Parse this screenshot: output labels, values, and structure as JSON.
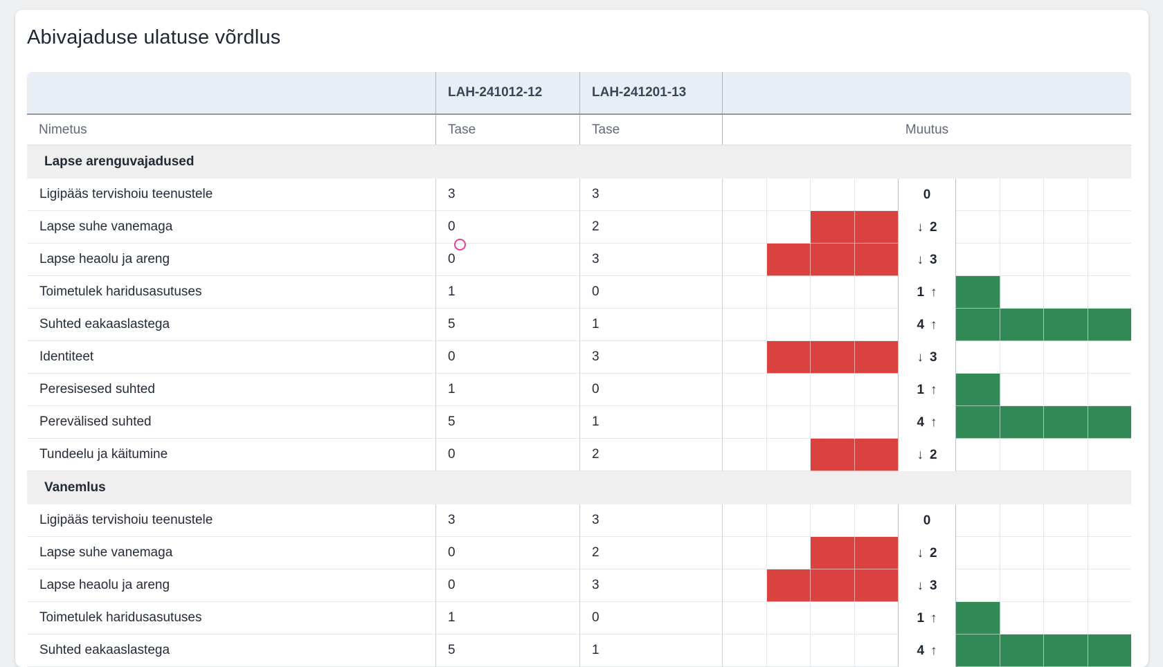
{
  "page": {
    "title": "Abivajaduse ulatuse võrdlus"
  },
  "icons": {
    "decrease": "↓",
    "increase": "↑",
    "click_marker": "pink-ring"
  },
  "colors": {
    "negative_bar": "#d9423f",
    "positive_bar": "#318a55",
    "header_background": "#e8eef6",
    "section_background": "#efefef",
    "annotation_pink": "#e83e97"
  },
  "table": {
    "assessments": [
      "LAH-241012-12",
      "LAH-241201-13"
    ],
    "columns": {
      "name": "Nimetus",
      "level": "Tase",
      "change": "Muutus"
    },
    "sections": [
      {
        "title": "Lapse arenguvajadused",
        "rows": [
          {
            "name": "Ligipääs tervishoiu teenustele",
            "tase1": "3",
            "tase2": "3",
            "muutus": 0,
            "muutus_display": "0"
          },
          {
            "name": "Lapse suhe vanemaga",
            "tase1": "0",
            "tase2": "2",
            "muutus": -2,
            "muutus_display": "2"
          },
          {
            "name": "Lapse heaolu ja areng",
            "tase1": "0",
            "tase2": "3",
            "muutus": -3,
            "muutus_display": "3"
          },
          {
            "name": "Toimetulek haridusasutuses",
            "tase1": "1",
            "tase2": "0",
            "muutus": 1,
            "muutus_display": "1"
          },
          {
            "name": "Suhted eakaaslastega",
            "tase1": "5",
            "tase2": "1",
            "muutus": 4,
            "muutus_display": "4"
          },
          {
            "name": "Identiteet",
            "tase1": "0",
            "tase2": "3",
            "muutus": -3,
            "muutus_display": "3"
          },
          {
            "name": "Peresisesed suhted",
            "tase1": "1",
            "tase2": "0",
            "muutus": 1,
            "muutus_display": "1"
          },
          {
            "name": "Perevälised suhted",
            "tase1": "5",
            "tase2": "1",
            "muutus": 4,
            "muutus_display": "4"
          },
          {
            "name": "Tundeelu ja käitumine",
            "tase1": "0",
            "tase2": "2",
            "muutus": -2,
            "muutus_display": "2"
          }
        ]
      },
      {
        "title": "Vanemlus",
        "rows": [
          {
            "name": "Ligipääs tervishoiu teenustele",
            "tase1": "3",
            "tase2": "3",
            "muutus": 0,
            "muutus_display": "0"
          },
          {
            "name": "Lapse suhe vanemaga",
            "tase1": "0",
            "tase2": "2",
            "muutus": -2,
            "muutus_display": "2"
          },
          {
            "name": "Lapse heaolu ja areng",
            "tase1": "0",
            "tase2": "3",
            "muutus": -3,
            "muutus_display": "3"
          },
          {
            "name": "Toimetulek haridusasutuses",
            "tase1": "1",
            "tase2": "0",
            "muutus": 1,
            "muutus_display": "1"
          },
          {
            "name": "Suhted eakaaslastega",
            "tase1": "5",
            "tase2": "1",
            "muutus": 4,
            "muutus_display": "4"
          }
        ]
      }
    ]
  }
}
